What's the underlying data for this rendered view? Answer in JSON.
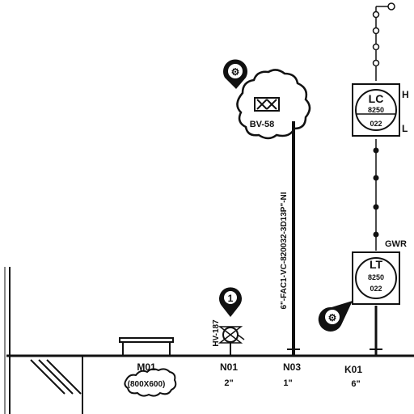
{
  "instruments": {
    "lc": {
      "tag": "LC",
      "number_top": "8250",
      "number_bottom": "022",
      "high_label": "H",
      "low_label": "L"
    },
    "lt": {
      "tag": "LT",
      "number_top": "8250",
      "number_bottom": "022",
      "gwr_label": "GWR"
    }
  },
  "valve": {
    "tag": "BV-58"
  },
  "pipe": {
    "line_label": "6\"-FAC1-VC-820032-3D13P\"-NI"
  },
  "relief_item": {
    "tag": "HV-187"
  },
  "nozzles": [
    {
      "tag": "M01",
      "size": "(800X600)"
    },
    {
      "tag": "N01",
      "size": "2\""
    },
    {
      "tag": "N03",
      "size": "1\""
    },
    {
      "tag": "K01",
      "size": "6\""
    }
  ],
  "callouts": {
    "valve_callout_glyph": "⚙",
    "lt_callout_glyph": "⚙",
    "relief_callout_glyph": "1"
  }
}
